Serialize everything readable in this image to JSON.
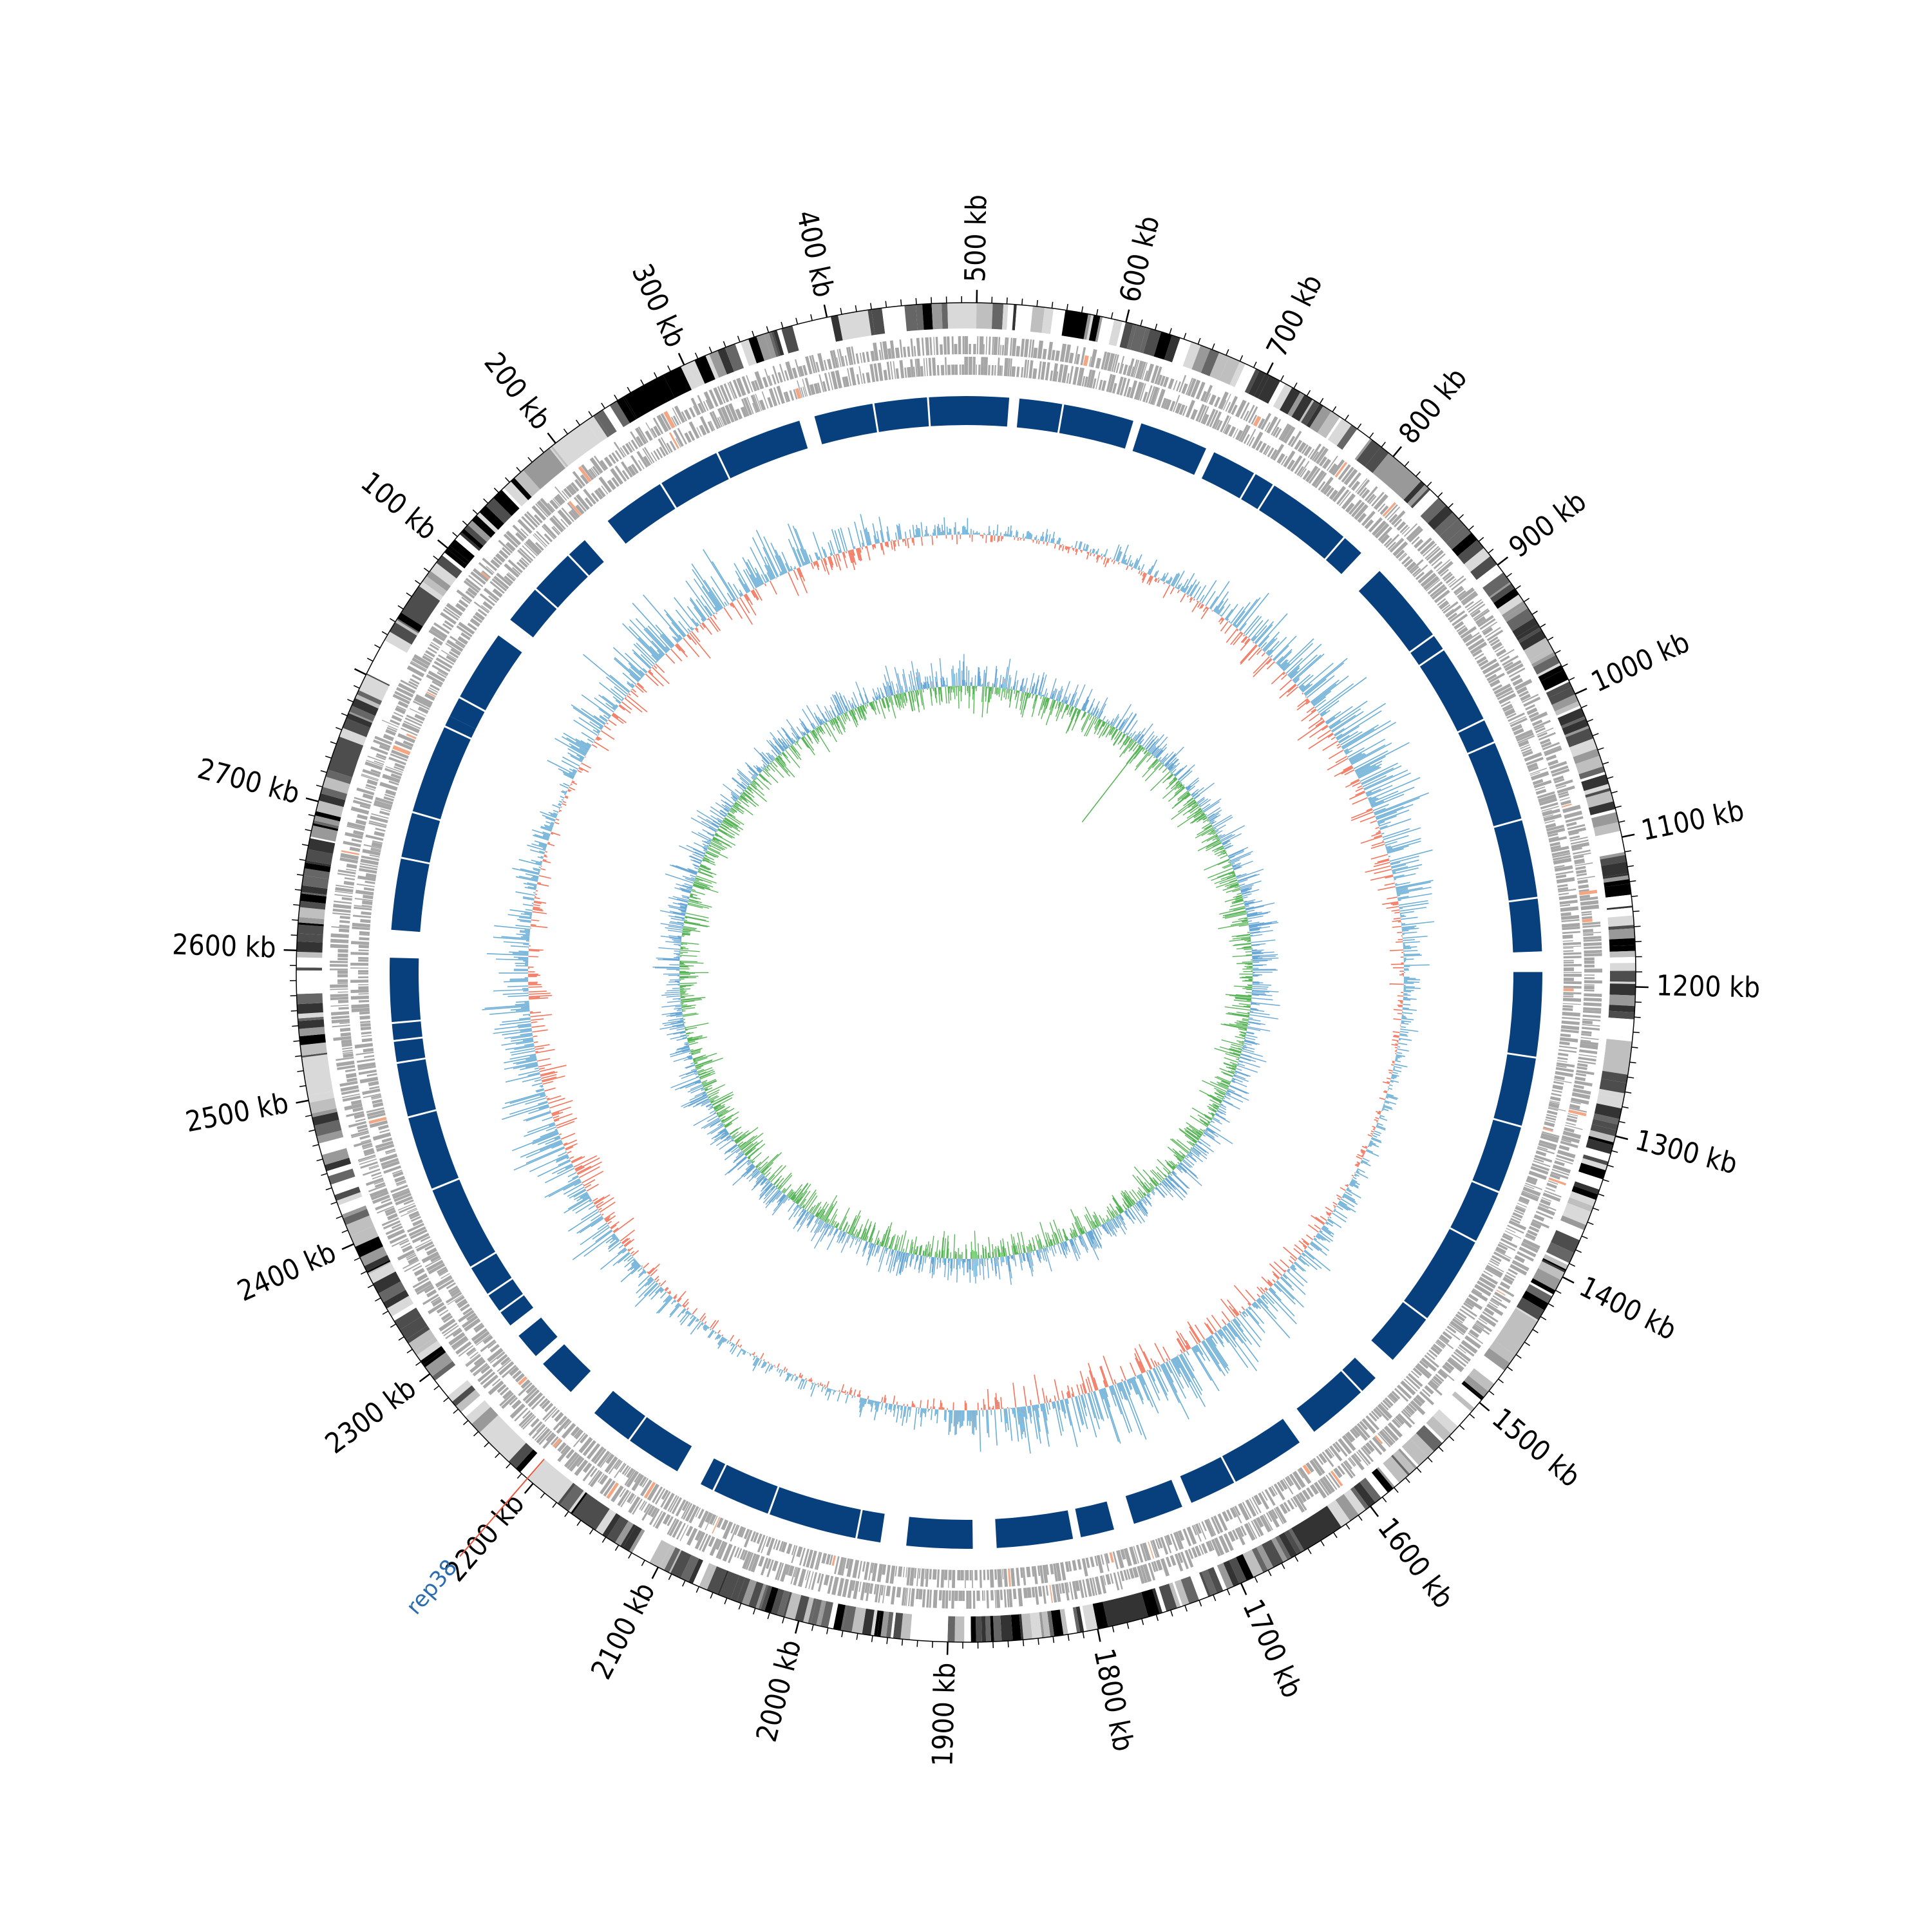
{
  "figure": {
    "genome_length_kb": 2790,
    "tick_labels": [
      "100 kb",
      "200 kb",
      "300 kb",
      "400 kb",
      "500 kb",
      "600 kb",
      "700 kb",
      "800 kb",
      "900 kb",
      "1000 kb",
      "1100 kb",
      "1200 kb",
      "1300 kb",
      "1400 kb",
      "1500 kb",
      "1600 kb",
      "1700 kb",
      "1800 kb",
      "1900 kb",
      "2000 kb",
      "2100 kb",
      "2200 kb",
      "2300 kb",
      "2400 kb",
      "2500 kb",
      "2600 kb",
      "2700 kb"
    ],
    "tick_positions_kb": [
      100,
      200,
      300,
      400,
      500,
      600,
      700,
      800,
      900,
      1000,
      1100,
      1200,
      1300,
      1400,
      1500,
      1600,
      1700,
      1800,
      1900,
      2000,
      2100,
      2200,
      2300,
      2400,
      2500,
      2600,
      2700
    ],
    "annotation": {
      "label": "rep38",
      "position_kb": 2205,
      "label_color": "#2b6cb0",
      "line_color": "#e8583f"
    },
    "colors": {
      "ideogram_dark": "#000000",
      "ideogram_mid": "#666666",
      "ideogram_light": "#d9d9d9",
      "genes_gray": "#a6a6a6",
      "genes_highlight": "#f4a582",
      "blocks_blue": "#08407e",
      "skew_red": "#f4735a",
      "skew_blue": "#6baed6",
      "gc_green": "#5ab55a",
      "gc_blue": "#6aa8d6"
    }
  }
}
